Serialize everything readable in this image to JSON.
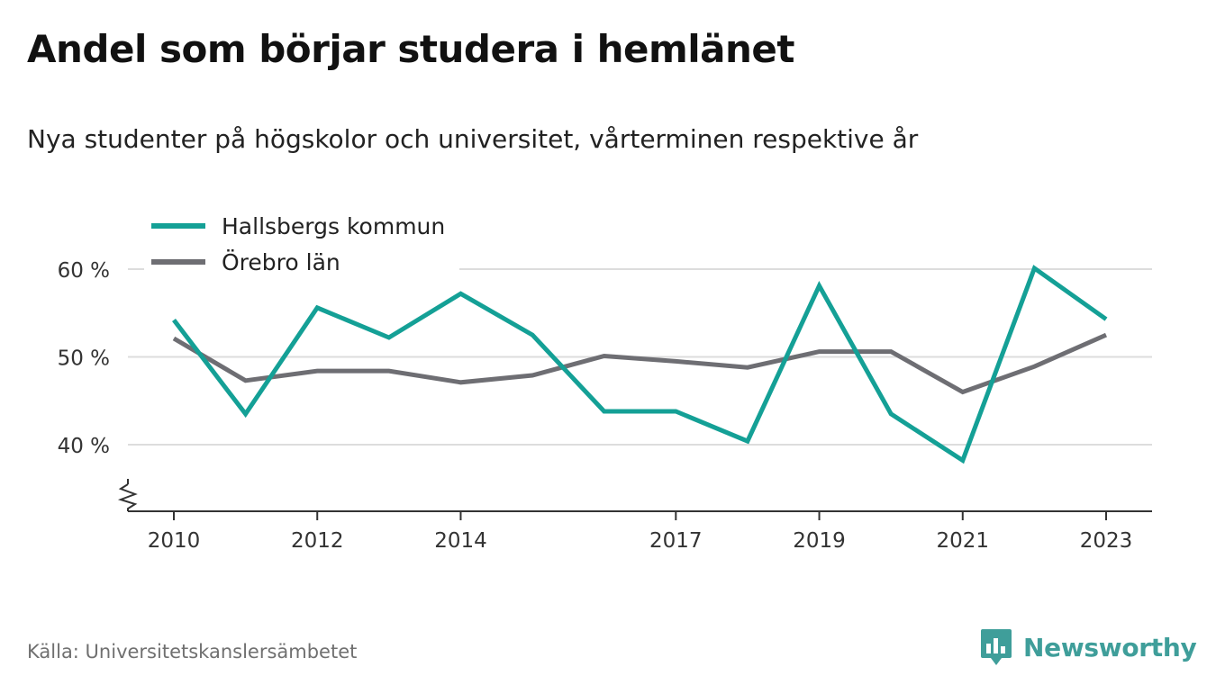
{
  "header": {
    "title": "Andel som börjar studera i hemlänet",
    "subtitle": "Nya studenter på högskolor och universitet, vårterminen respektive år"
  },
  "footer": {
    "source": "Källa: Universitetskanslersämbetet",
    "brand": "Newsworthy"
  },
  "colors": {
    "hallsberg": "#14a096",
    "orebro": "#6e6e73",
    "grid": "#dddddd",
    "axis": "#333333",
    "brand": "#3f9e9a"
  },
  "chart_data": {
    "type": "line",
    "x": [
      2010,
      2011,
      2012,
      2013,
      2014,
      2015,
      2016,
      2017,
      2018,
      2019,
      2020,
      2021,
      2022,
      2023
    ],
    "series": [
      {
        "name": "Hallsbergs kommun",
        "color": "#14a096",
        "values": [
          54.2,
          43.5,
          55.6,
          52.2,
          57.2,
          52.5,
          43.8,
          43.8,
          40.4,
          58.1,
          43.5,
          38.2,
          60.1,
          54.3
        ]
      },
      {
        "name": "Örebro län",
        "color": "#6e6e73",
        "values": [
          52.1,
          47.3,
          48.4,
          48.4,
          47.1,
          47.9,
          50.1,
          49.5,
          48.8,
          50.6,
          50.6,
          46.0,
          48.9,
          52.5
        ]
      }
    ],
    "x_ticks": [
      "2010",
      "2012",
      "2014",
      "2017",
      "2019",
      "2021",
      "2023"
    ],
    "y_ticks": [
      {
        "value": 40,
        "label": "40 %"
      },
      {
        "value": 50,
        "label": "50 %"
      },
      {
        "value": 60,
        "label": "60 %"
      }
    ],
    "ylim": [
      32.5,
      60
    ],
    "y_axis_break": true,
    "grid": true,
    "legend_position": "top-left"
  }
}
